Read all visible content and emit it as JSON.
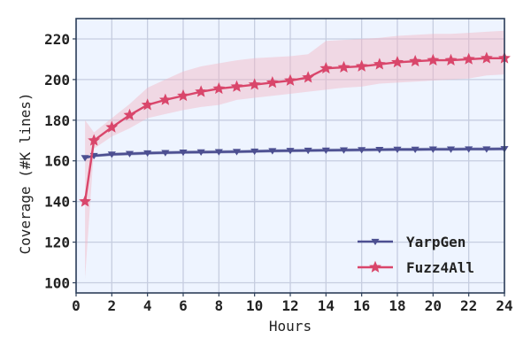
{
  "chart_data": {
    "type": "line",
    "xlabel": "Hours",
    "ylabel": "Coverage (#K lines)",
    "xlim": [
      0,
      24
    ],
    "ylim": [
      95,
      230
    ],
    "xticks": [
      0,
      2,
      4,
      6,
      8,
      10,
      12,
      14,
      16,
      18,
      20,
      22,
      24
    ],
    "yticks": [
      100,
      120,
      140,
      160,
      180,
      200,
      220
    ],
    "grid": true,
    "legend_position": "lower-right",
    "background_color": "#eef4ff",
    "frame_color": "#2d3f5a",
    "grid_color": "#c6cde0",
    "x": [
      0.5,
      1,
      2,
      3,
      4,
      5,
      6,
      7,
      8,
      9,
      10,
      11,
      12,
      13,
      14,
      15,
      16,
      17,
      18,
      19,
      20,
      21,
      22,
      23,
      24
    ],
    "series": [
      {
        "name": "YarpGen",
        "color": "#4c4f91",
        "marker": "triangle-down",
        "values": [
          161.5,
          162.5,
          163.2,
          163.5,
          163.8,
          164.0,
          164.2,
          164.3,
          164.4,
          164.5,
          164.7,
          164.9,
          165.0,
          165.1,
          165.2,
          165.3,
          165.4,
          165.5,
          165.6,
          165.6,
          165.7,
          165.7,
          165.8,
          165.8,
          165.9
        ],
        "lower": [
          161.0,
          162.0,
          162.6,
          162.9,
          163.2,
          163.4,
          163.6,
          163.7,
          163.8,
          163.9,
          164.1,
          164.3,
          164.4,
          164.5,
          164.6,
          164.7,
          164.8,
          164.9,
          165.0,
          165.0,
          165.1,
          165.1,
          165.2,
          165.2,
          165.3
        ],
        "upper": [
          162.0,
          163.0,
          163.8,
          164.1,
          164.4,
          164.6,
          164.8,
          164.9,
          165.0,
          165.1,
          165.3,
          165.5,
          165.6,
          165.7,
          165.8,
          165.9,
          166.0,
          166.1,
          166.2,
          166.2,
          166.3,
          166.3,
          166.4,
          166.4,
          166.5
        ]
      },
      {
        "name": "Fuzz4All",
        "color": "#d9466b",
        "marker": "star",
        "band_color": "#f2b6c3",
        "values": [
          140,
          170,
          176.5,
          182.5,
          187.5,
          190,
          192,
          194,
          195.5,
          196.5,
          197.5,
          198.5,
          199.5,
          201,
          205.5,
          206,
          206.5,
          207.5,
          208.5,
          209,
          209.5,
          209.5,
          210,
          210.5,
          210.5
        ],
        "lower": [
          102,
          166,
          172,
          176,
          181,
          183,
          185,
          186.5,
          187.5,
          190,
          191,
          192,
          193,
          194,
          195,
          196,
          196.5,
          198,
          198.5,
          199,
          199.5,
          200,
          200.5,
          202,
          202.5
        ],
        "upper": [
          180,
          174,
          181,
          188,
          196,
          200,
          204,
          206.5,
          208,
          209.5,
          210.5,
          211,
          211.5,
          212.5,
          219,
          219.5,
          220,
          220.5,
          221.5,
          222,
          222.5,
          222.5,
          223,
          223.5,
          224
        ]
      }
    ]
  }
}
